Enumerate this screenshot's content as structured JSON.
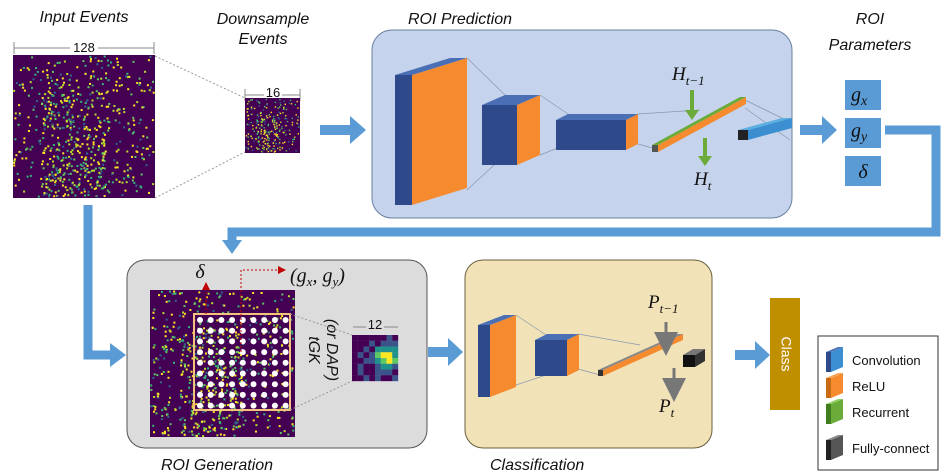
{
  "input_events": {
    "title": "Input Events",
    "size": 128
  },
  "downsample": {
    "title_lines": [
      "Downsample",
      "Events"
    ],
    "size": 16
  },
  "roi_prediction": {
    "title": "ROI Prediction",
    "hidden_in": {
      "base": "H",
      "sub": "t−1"
    },
    "hidden_out": {
      "base": "H",
      "sub": "t"
    }
  },
  "roi_parameters": {
    "title_lines": [
      "ROI",
      "Parameters"
    ],
    "params": [
      {
        "base": "g",
        "sub": "x"
      },
      {
        "base": "g",
        "sub": "y"
      },
      {
        "base": "δ"
      }
    ]
  },
  "roi_generation": {
    "title": "ROI Generation",
    "delta": "δ",
    "center": [
      {
        "base": "(g",
        "sub": "x"
      },
      {
        "base": ", g",
        "sub": "y"
      },
      {
        "base": ")"
      }
    ],
    "method_lines": [
      "tGK",
      "(or DAP)"
    ],
    "crop_size": 12
  },
  "classification": {
    "title": "Classification",
    "state_in": {
      "base": "P",
      "sub": "t−1"
    },
    "state_out": {
      "base": "P",
      "sub": "t"
    }
  },
  "output": "Class",
  "legend": [
    "Convolution",
    "ReLU",
    "Recurrent",
    "Fully-connect"
  ]
}
